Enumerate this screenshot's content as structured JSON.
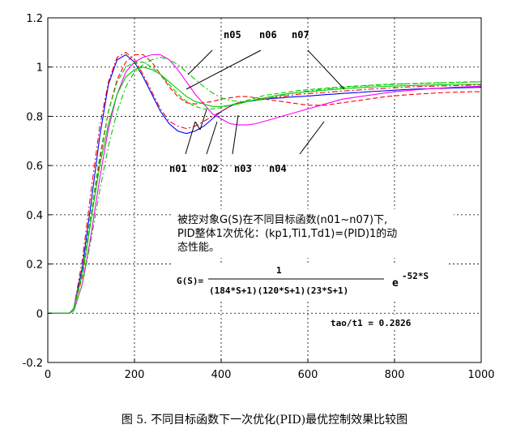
{
  "chart_data": {
    "type": "line",
    "xlim": [
      0,
      1000
    ],
    "ylim": [
      -0.2,
      1.2
    ],
    "x_ticks": [
      "0",
      "200",
      "400",
      "600",
      "800",
      "1000"
    ],
    "y_ticks": [
      "-0.2",
      "0",
      "0.2",
      "0.4",
      "0.6",
      "0.8",
      "1",
      "1.2"
    ],
    "grid": true,
    "x": [
      0,
      50,
      60,
      80,
      100,
      120,
      140,
      160,
      180,
      200,
      220,
      240,
      260,
      280,
      300,
      320,
      340,
      360,
      380,
      400,
      420,
      440,
      460,
      480,
      500,
      520,
      540,
      560,
      580,
      600,
      620,
      640,
      660,
      680,
      700,
      720,
      740,
      760,
      780,
      800,
      820,
      840,
      860,
      880,
      900,
      920,
      940,
      960,
      980,
      1000
    ],
    "series": [
      {
        "name": "n01",
        "color": "#0000ff",
        "style": "solid",
        "values": [
          0,
          0,
          0.02,
          0.19,
          0.45,
          0.72,
          0.93,
          1.03,
          1.05,
          1.02,
          0.96,
          0.89,
          0.82,
          0.77,
          0.74,
          0.73,
          0.74,
          0.76,
          0.79,
          0.82,
          0.84,
          0.855,
          0.86,
          0.865,
          0.87,
          0.873,
          0.875,
          0.878,
          0.88,
          0.882,
          0.885,
          0.888,
          0.89,
          0.893,
          0.895,
          0.897,
          0.9,
          0.902,
          0.904,
          0.906,
          0.908,
          0.91,
          0.911,
          0.912,
          0.913,
          0.914,
          0.915,
          0.916,
          0.917,
          0.918
        ]
      },
      {
        "name": "n02",
        "color": "#ff0000",
        "style": "dashdot",
        "values": [
          0,
          0,
          0.02,
          0.22,
          0.5,
          0.76,
          0.94,
          1.04,
          1.06,
          1.03,
          0.97,
          0.9,
          0.83,
          0.78,
          0.76,
          0.75,
          0.76,
          0.78,
          0.8,
          0.82,
          0.84,
          0.855,
          0.86,
          0.865,
          0.87,
          0.875,
          0.88,
          0.885,
          0.89,
          0.892,
          0.895,
          0.897,
          0.9,
          0.903,
          0.905,
          0.907,
          0.91,
          0.912,
          0.914,
          0.916,
          0.918,
          0.92,
          0.921,
          0.922,
          0.923,
          0.924,
          0.925,
          0.926,
          0.927,
          0.928
        ]
      },
      {
        "name": "n03",
        "color": "#ff00ff",
        "style": "solid",
        "values": [
          0,
          0,
          0.01,
          0.12,
          0.32,
          0.55,
          0.75,
          0.89,
          0.98,
          1.02,
          1.04,
          1.05,
          1.05,
          1.03,
          0.99,
          0.94,
          0.89,
          0.85,
          0.81,
          0.79,
          0.77,
          0.765,
          0.765,
          0.77,
          0.78,
          0.79,
          0.8,
          0.81,
          0.82,
          0.83,
          0.84,
          0.85,
          0.86,
          0.87,
          0.875,
          0.88,
          0.885,
          0.89,
          0.895,
          0.9,
          0.903,
          0.906,
          0.909,
          0.912,
          0.914,
          0.916,
          0.918,
          0.92,
          0.921,
          0.922
        ]
      },
      {
        "name": "n04",
        "color": "#ff0000",
        "style": "dashed",
        "values": [
          0,
          0,
          0.02,
          0.15,
          0.38,
          0.62,
          0.82,
          0.95,
          1.02,
          1.05,
          1.05,
          1.02,
          0.97,
          0.92,
          0.88,
          0.855,
          0.85,
          0.855,
          0.86,
          0.87,
          0.875,
          0.88,
          0.88,
          0.875,
          0.87,
          0.865,
          0.86,
          0.855,
          0.85,
          0.845,
          0.845,
          0.845,
          0.85,
          0.855,
          0.86,
          0.865,
          0.87,
          0.875,
          0.88,
          0.883,
          0.886,
          0.889,
          0.891,
          0.893,
          0.895,
          0.897,
          0.898,
          0.899,
          0.9,
          0.9
        ]
      },
      {
        "name": "n05",
        "color": "#00cc00",
        "style": "dashed",
        "values": [
          0,
          0,
          0.02,
          0.17,
          0.41,
          0.64,
          0.82,
          0.94,
          1.0,
          1.02,
          1.02,
          1.0,
          0.97,
          0.93,
          0.89,
          0.86,
          0.84,
          0.83,
          0.83,
          0.835,
          0.845,
          0.855,
          0.865,
          0.875,
          0.885,
          0.89,
          0.895,
          0.9,
          0.905,
          0.908,
          0.911,
          0.914,
          0.917,
          0.92,
          0.922,
          0.924,
          0.926,
          0.928,
          0.93,
          0.931,
          0.932,
          0.933,
          0.934,
          0.935,
          0.936,
          0.937,
          0.938,
          0.939,
          0.94,
          0.94
        ]
      },
      {
        "name": "n06",
        "color": "#00cc00",
        "style": "solid",
        "values": [
          0,
          0,
          0.02,
          0.16,
          0.38,
          0.6,
          0.77,
          0.89,
          0.96,
          0.99,
          1.0,
          0.99,
          0.97,
          0.94,
          0.91,
          0.88,
          0.86,
          0.85,
          0.84,
          0.84,
          0.845,
          0.85,
          0.86,
          0.868,
          0.875,
          0.882,
          0.888,
          0.893,
          0.897,
          0.9,
          0.903,
          0.906,
          0.909,
          0.912,
          0.914,
          0.916,
          0.918,
          0.92,
          0.922,
          0.923,
          0.924,
          0.925,
          0.926,
          0.927,
          0.928,
          0.929,
          0.93,
          0.93,
          0.93,
          0.93
        ]
      },
      {
        "name": "n07",
        "color": "#00cc00",
        "style": "dashdot",
        "values": [
          0,
          0,
          0.01,
          0.12,
          0.3,
          0.5,
          0.68,
          0.82,
          0.92,
          0.98,
          1.01,
          1.03,
          1.04,
          1.03,
          1.01,
          0.98,
          0.95,
          0.92,
          0.895,
          0.875,
          0.865,
          0.86,
          0.86,
          0.865,
          0.87,
          0.878,
          0.885,
          0.892,
          0.898,
          0.903,
          0.907,
          0.911,
          0.914,
          0.917,
          0.92,
          0.922,
          0.924,
          0.926,
          0.928,
          0.93,
          0.931,
          0.932,
          0.933,
          0.934,
          0.935,
          0.936,
          0.937,
          0.938,
          0.939,
          0.94
        ]
      }
    ],
    "annotations": {
      "line1": "被控对象G(S)在不同目标函数(n01~n07)下,",
      "line2": "PID整体1次优化：(kp1,Ti1,Td1)=(PID)1的动",
      "line3": "态性能。",
      "gs_label": "G(S)=",
      "numerator": "1",
      "denominator": "(184*S+1)(120*S+1)(23*S+1)",
      "exp_base": "e",
      "exponent": "-52*S",
      "tao": "tao/t1  =  0.2826"
    }
  },
  "caption": "图 5. 不同目标函数下一次优化(PID)最优控制效果比较图"
}
